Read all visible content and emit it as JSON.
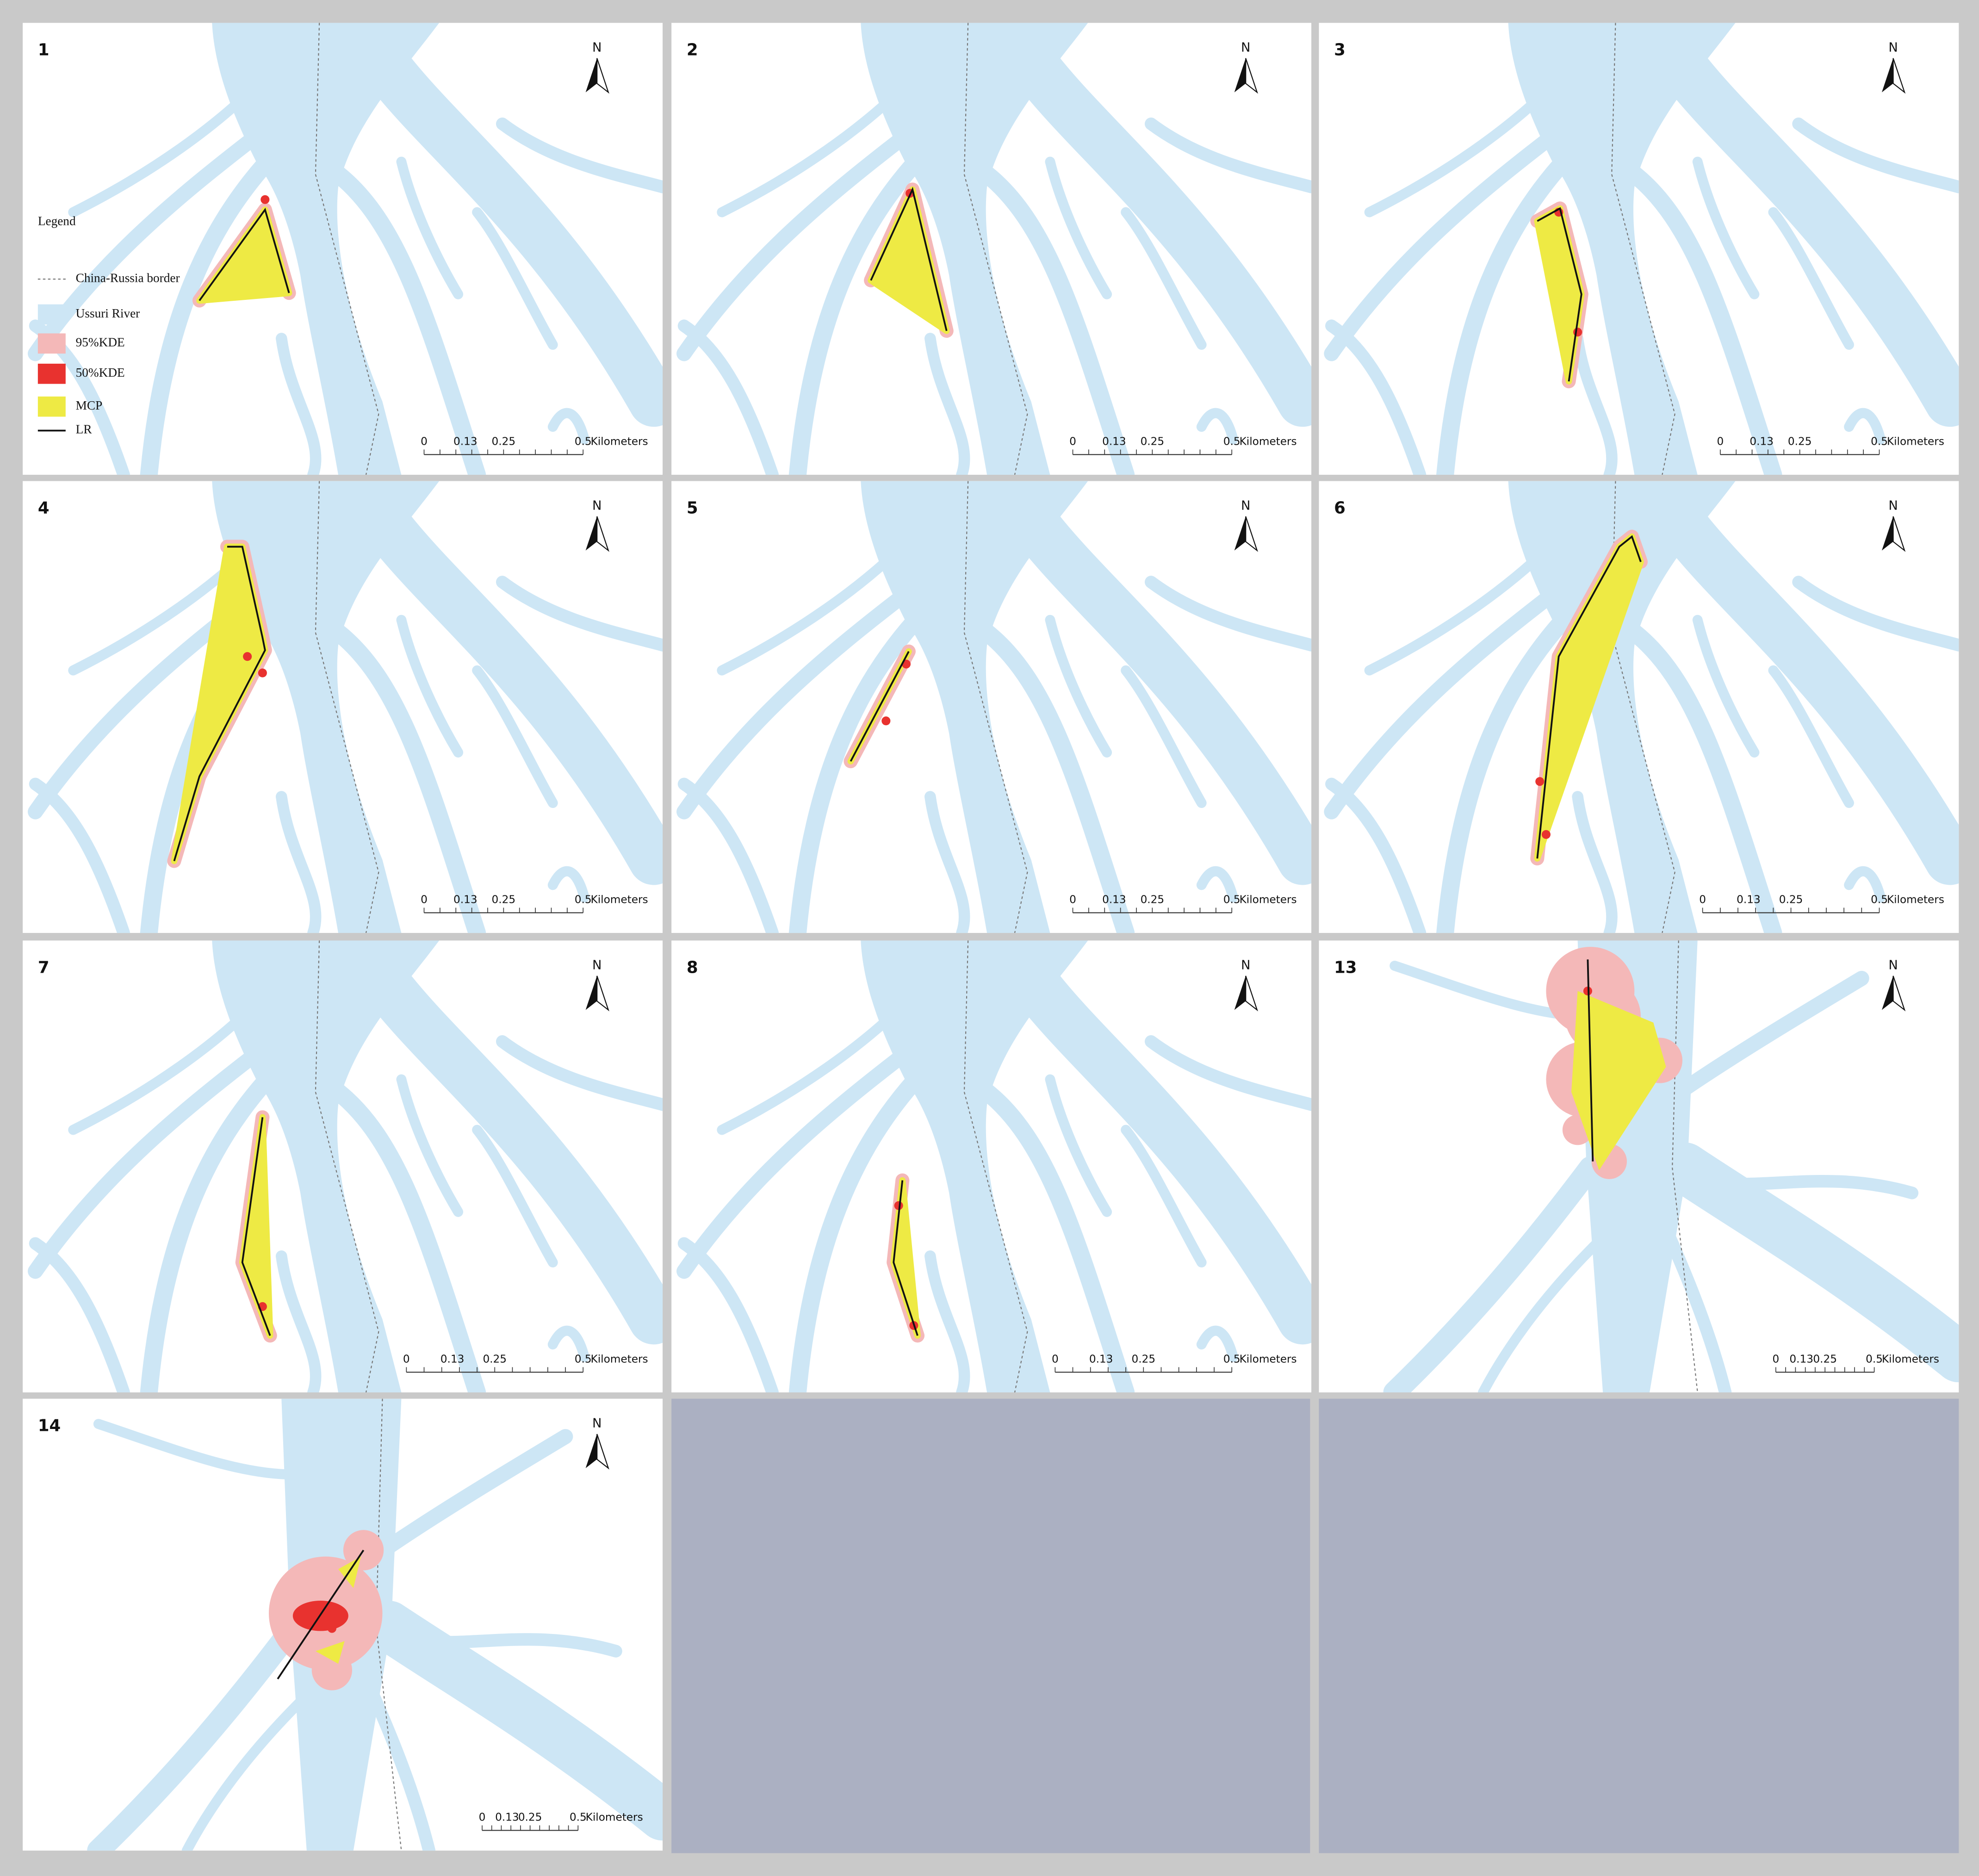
{
  "panels": [
    {
      "label": "1",
      "north": "N",
      "scale_bar": {
        "ticks": [
          "0",
          "0.13",
          "0.25",
          "0.5"
        ],
        "unit": "Kilometers"
      }
    },
    {
      "label": "2",
      "north": "N",
      "scale_bar": {
        "ticks": [
          "0",
          "0.13",
          "0.25",
          "0.5"
        ],
        "unit": "Kilometers"
      }
    },
    {
      "label": "3",
      "north": "N",
      "scale_bar": {
        "ticks": [
          "0",
          "0.13",
          "0.25",
          "0.5"
        ],
        "unit": "Kilometers"
      }
    },
    {
      "label": "4",
      "north": "N",
      "scale_bar": {
        "ticks": [
          "0",
          "0.13",
          "0.25",
          "0.5"
        ],
        "unit": "Kilometers"
      }
    },
    {
      "label": "5",
      "north": "N",
      "scale_bar": {
        "ticks": [
          "0",
          "0.13",
          "0.25",
          "0.5"
        ],
        "unit": "Kilometers"
      }
    },
    {
      "label": "6",
      "north": "N",
      "scale_bar": {
        "ticks": [
          "0",
          "0.13",
          "0.25",
          "0.5"
        ],
        "unit": "Kilometers"
      }
    },
    {
      "label": "7",
      "north": "N",
      "scale_bar": {
        "ticks": [
          "0",
          "0.13",
          "0.25",
          "0.5"
        ],
        "unit": "Kilometers"
      }
    },
    {
      "label": "8",
      "north": "N",
      "scale_bar": {
        "ticks": [
          "0",
          "0.13",
          "0.25",
          "0.5"
        ],
        "unit": "Kilometers"
      }
    },
    {
      "label": "13",
      "north": "N",
      "scale_bar": {
        "ticks": [
          "0",
          "0.13",
          "0.25",
          "0.5"
        ],
        "unit": "Kilometers"
      }
    },
    {
      "label": "14",
      "north": "N",
      "scale_bar": {
        "ticks": [
          "0",
          "0.13",
          "0.25",
          "0.5"
        ],
        "unit": "Kilometers"
      }
    }
  ],
  "legend": {
    "title": "Legend",
    "items": [
      "China-Russia border",
      "Ussuri River",
      "95%KDE",
      "50%KDE",
      "MCP",
      "LR"
    ]
  }
}
